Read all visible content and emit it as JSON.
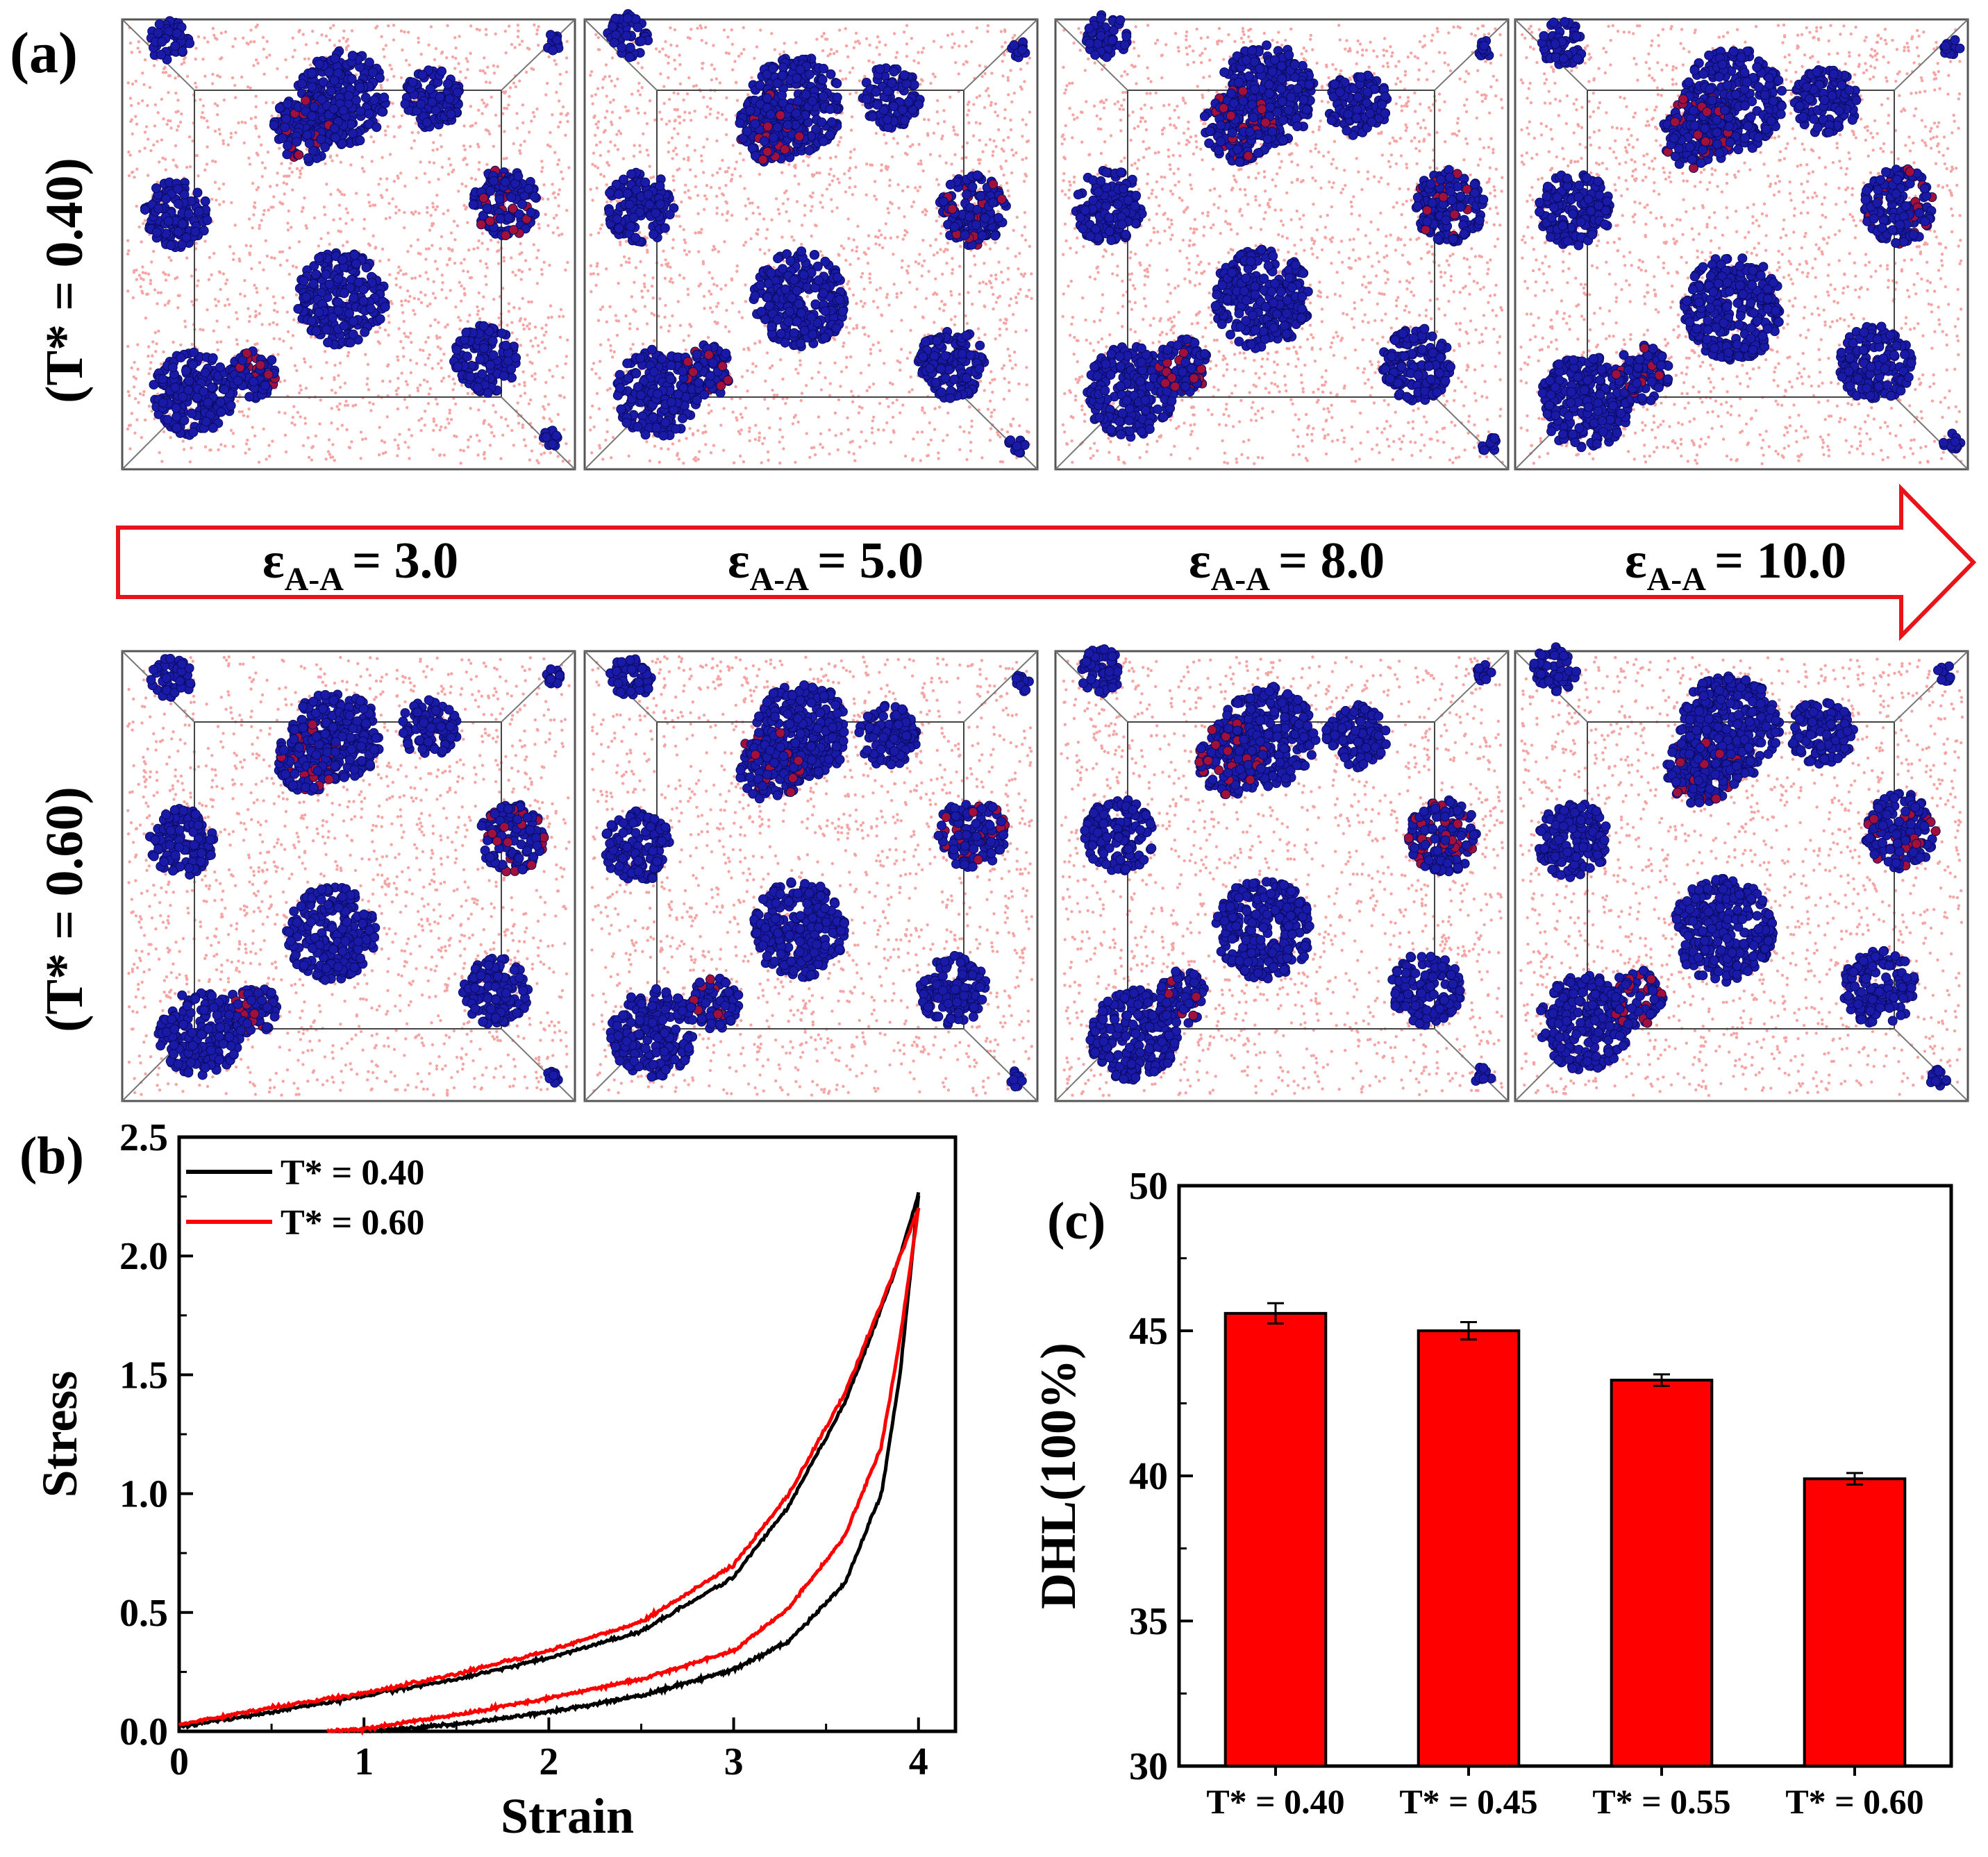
{
  "panel_labels": {
    "a": "(a)",
    "b": "(b)",
    "c": "(c)"
  },
  "snapshot_rows": [
    {
      "label": "(T* = 0.40)"
    },
    {
      "label": "(T* = 0.60)"
    }
  ],
  "arrow": {
    "labels": [
      {
        "prefix": "ε",
        "sub": "A-A",
        "value": "= 3.0"
      },
      {
        "prefix": "ε",
        "sub": "A-A",
        "value": "= 5.0"
      },
      {
        "prefix": "ε",
        "sub": "A-A",
        "value": "= 8.0"
      },
      {
        "prefix": "ε",
        "sub": "A-A",
        "value": "= 10.0"
      }
    ],
    "color": "#e8141a"
  },
  "colors": {
    "matrix": "#f05a5a",
    "cluster": "#1a1aa8",
    "box": "#555555",
    "bar": "#ff0000"
  },
  "chart_data": [
    {
      "type": "line",
      "xlabel": "Strain",
      "ylabel": "Stress",
      "xlim": [
        0,
        4.2
      ],
      "ylim": [
        0,
        2.5
      ],
      "xticks": [
        "0",
        "1",
        "2",
        "3",
        "4"
      ],
      "yticks": [
        "0.0",
        "0.5",
        "1.0",
        "1.5",
        "2.0",
        "2.5"
      ],
      "legend_position": "top-left",
      "series": [
        {
          "name": "T* = 0.40",
          "color": "#000000",
          "loading": {
            "x": [
              0,
              0.5,
              1.0,
              1.5,
              2.0,
              2.5,
              3.0,
              3.3,
              3.6,
              3.8,
              3.9,
              4.0
            ],
            "y": [
              0.02,
              0.08,
              0.15,
              0.22,
              0.31,
              0.42,
              0.65,
              0.95,
              1.38,
              1.78,
              2.0,
              2.26
            ]
          },
          "unloading": {
            "x": [
              4.0,
              3.9,
              3.8,
              3.6,
              3.3,
              3.0,
              2.5,
              2.0,
              1.5,
              1.2,
              1.0
            ],
            "y": [
              2.26,
              1.5,
              1.0,
              0.62,
              0.38,
              0.26,
              0.15,
              0.08,
              0.03,
              0.01,
              0.0
            ]
          }
        },
        {
          "name": "T* = 0.60",
          "color": "#ff0000",
          "loading": {
            "x": [
              0,
              0.5,
              1.0,
              1.5,
              2.0,
              2.5,
              3.0,
              3.3,
              3.6,
              3.8,
              3.9,
              4.0
            ],
            "y": [
              0.03,
              0.1,
              0.16,
              0.24,
              0.34,
              0.46,
              0.7,
              1.0,
              1.42,
              1.8,
              2.0,
              2.2
            ]
          },
          "unloading": {
            "x": [
              4.0,
              3.9,
              3.8,
              3.6,
              3.3,
              3.0,
              2.5,
              2.0,
              1.5,
              1.0,
              0.8
            ],
            "y": [
              2.2,
              1.65,
              1.2,
              0.82,
              0.52,
              0.34,
              0.22,
              0.14,
              0.07,
              0.01,
              0.0
            ]
          }
        }
      ]
    },
    {
      "type": "bar",
      "ylabel": "DHL(100%)",
      "ylim": [
        30,
        50
      ],
      "yticks": [
        "30",
        "35",
        "40",
        "45",
        "50"
      ],
      "categories": [
        "T* = 0.40",
        "T* = 0.45",
        "T* = 0.55",
        "T* = 0.60"
      ],
      "values": [
        45.6,
        45.0,
        43.3,
        39.9
      ],
      "errors": [
        0.35,
        0.3,
        0.2,
        0.2
      ]
    }
  ]
}
